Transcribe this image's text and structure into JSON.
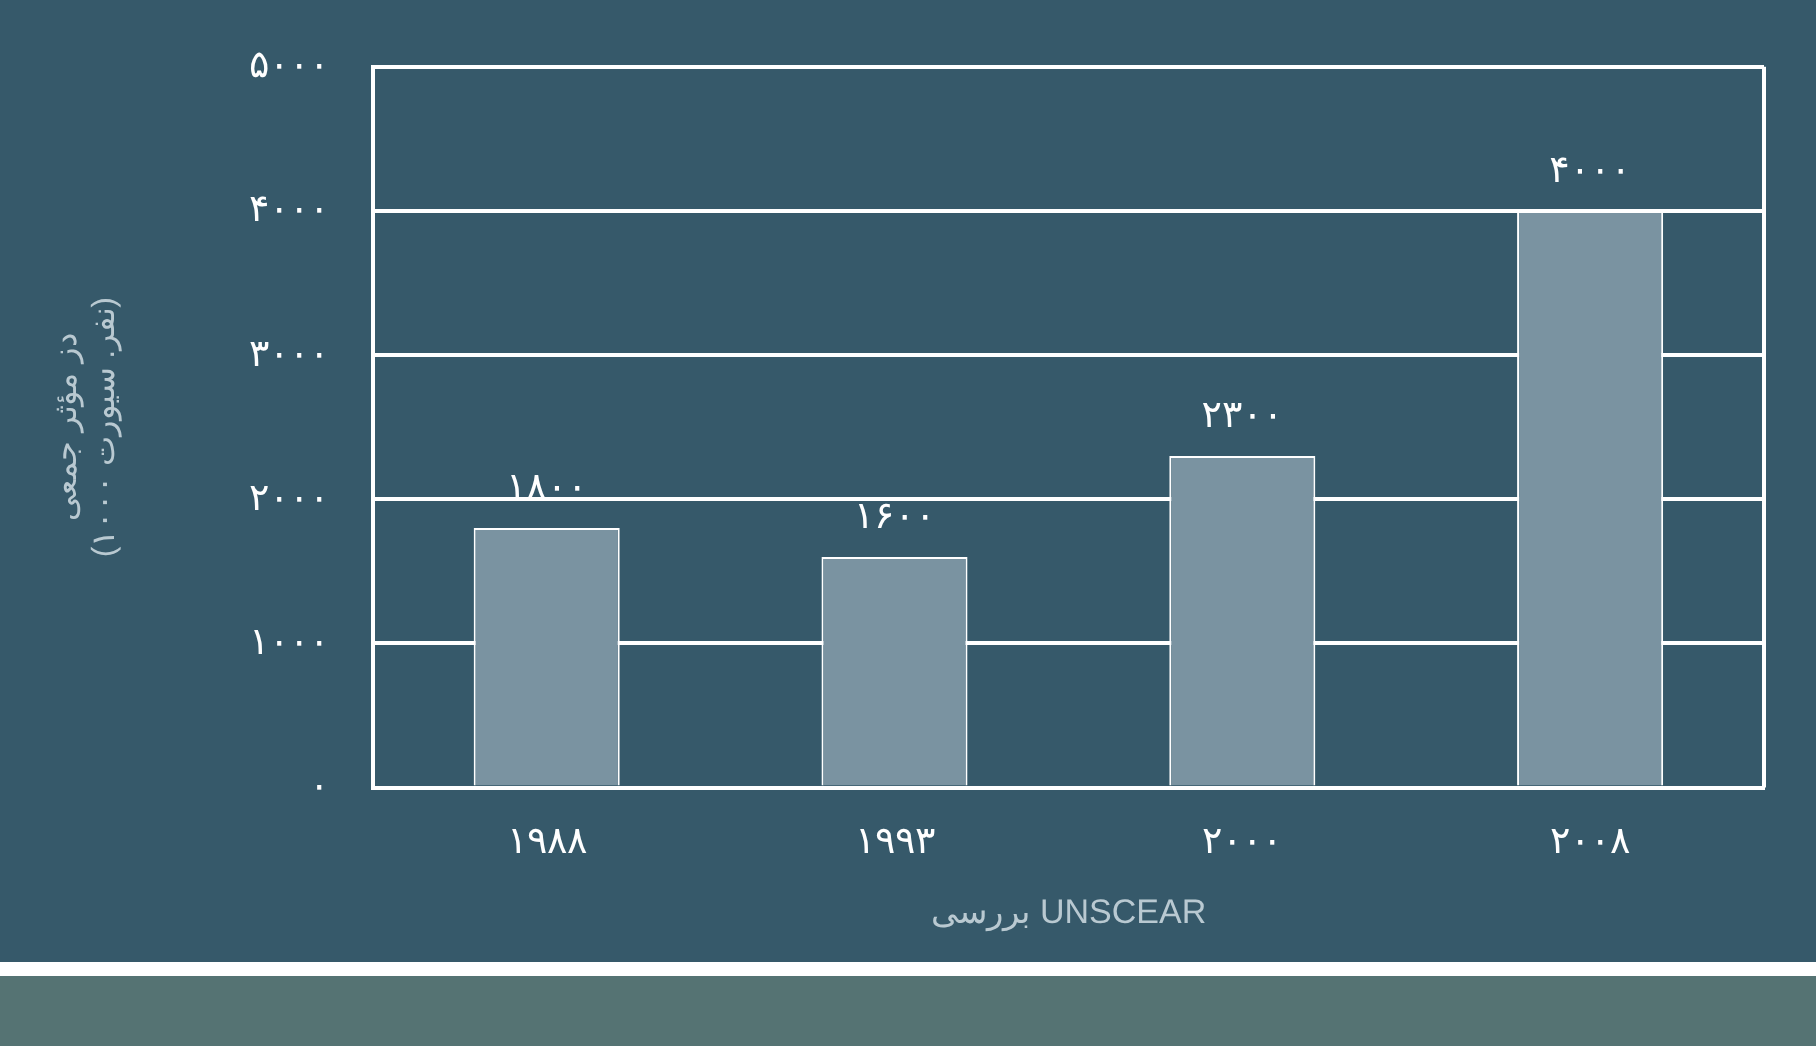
{
  "chart_data": {
    "type": "bar",
    "xlabel": "بررسی UNSCEAR",
    "ylabel": "دز مؤثر جمعی\n(۱۰۰۰ نفر. سیورت)",
    "categories": [
      "۱۹۸۸",
      "۱۹۹۳",
      "۲۰۰۰",
      "۲۰۰۸"
    ],
    "values": [
      1800,
      1600,
      2300,
      4000
    ],
    "color": "#7a93a1",
    "value_labels": [
      "۱۸۰۰",
      "۱۶۰۰",
      "۲۳۰۰",
      "۴۰۰۰"
    ],
    "ylim": [
      0,
      5000
    ],
    "yticks": [
      {
        "value": 0,
        "label": "۰"
      },
      {
        "value": 1000,
        "label": "۱۰۰۰"
      },
      {
        "value": 2000,
        "label": "۲۰۰۰"
      },
      {
        "value": 3000,
        "label": "۳۰۰۰"
      },
      {
        "value": 4000,
        "label": "۴۰۰۰"
      },
      {
        "value": 5000,
        "label": "۵۰۰۰"
      }
    ],
    "grid": "y",
    "legend": false
  }
}
